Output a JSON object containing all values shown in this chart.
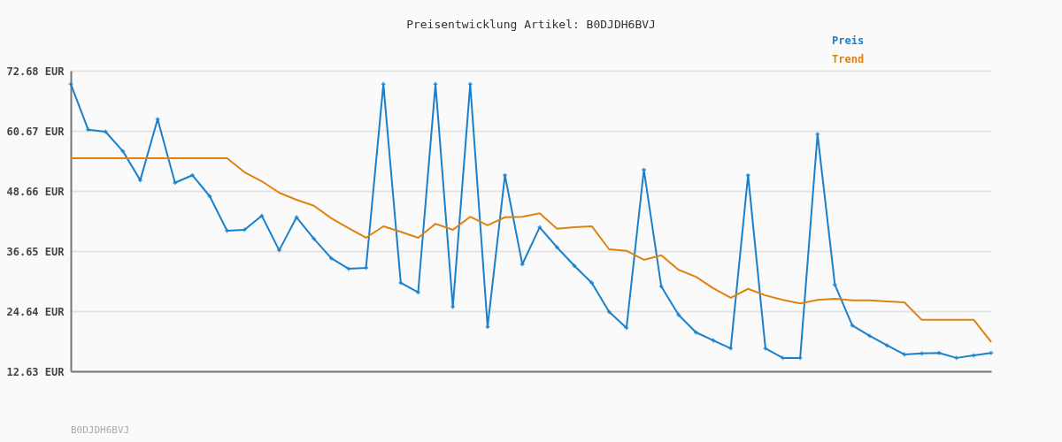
{
  "chart_data": {
    "type": "line",
    "title": "Preisentwicklung Artikel: B0DJDH6BVJ",
    "categories": [
      null,
      null,
      null,
      null,
      null,
      null,
      null,
      null,
      null,
      null,
      null,
      null,
      null,
      null,
      null,
      null,
      null,
      null,
      null,
      null,
      null,
      null,
      null,
      null,
      null,
      null,
      null,
      null,
      null,
      null,
      null,
      null,
      null,
      null,
      null,
      null,
      null,
      null,
      null,
      null,
      null,
      null,
      null,
      null,
      null,
      null,
      null,
      null,
      null,
      null,
      null,
      null,
      null,
      null
    ],
    "series": [
      {
        "name": "Preis",
        "color": "#1a80cc",
        "marker": "cross",
        "values": [
          70.0,
          60.9,
          60.5,
          56.6,
          50.8,
          63.0,
          50.3,
          51.8,
          47.6,
          40.7,
          40.9,
          43.7,
          36.8,
          43.4,
          39.1,
          35.2,
          33.1,
          33.3,
          70.0,
          30.3,
          28.4,
          70.0,
          25.5,
          70.0,
          21.5,
          51.8,
          34.0,
          41.4,
          37.4,
          33.7,
          30.3,
          24.5,
          21.3,
          52.9,
          29.6,
          23.9,
          20.4,
          18.8,
          17.2,
          51.8,
          17.2,
          15.3,
          15.3,
          60.0,
          29.9,
          21.8,
          19.7,
          17.8,
          16.0,
          16.2,
          16.3,
          15.3,
          15.8,
          16.3
        ]
      },
      {
        "name": "Trend",
        "color": "#e0820f",
        "marker": "none",
        "values": [
          55.2,
          55.2,
          55.2,
          55.2,
          55.2,
          55.2,
          55.2,
          55.2,
          55.2,
          55.2,
          52.4,
          50.6,
          48.3,
          46.9,
          45.7,
          43.2,
          41.2,
          39.3,
          41.6,
          40.5,
          39.3,
          42.1,
          40.9,
          43.5,
          41.8,
          43.4,
          43.5,
          44.2,
          41.1,
          41.4,
          41.6,
          37.0,
          36.7,
          34.9,
          35.8,
          32.9,
          31.5,
          29.2,
          27.3,
          29.1,
          27.8,
          26.9,
          26.2,
          26.9,
          27.1,
          26.8,
          26.8,
          26.6,
          26.4,
          22.9,
          22.9,
          22.9,
          22.9,
          18.5
        ]
      }
    ],
    "ylim": [
      12.63,
      72.68
    ],
    "yticks": [
      {
        "value": 12.63,
        "label": "12.63 EUR"
      },
      {
        "value": 24.64,
        "label": "24.64 EUR"
      },
      {
        "value": 36.65,
        "label": "36.65 EUR"
      },
      {
        "value": 48.66,
        "label": "48.66 EUR"
      },
      {
        "value": 60.67,
        "label": "60.67 EUR"
      },
      {
        "value": 72.68,
        "label": "72.68 EUR"
      }
    ],
    "grid": "y",
    "legend": "top right",
    "line_style": "solid",
    "tick_labels": "y",
    "annotations": [
      "B0DJDH6BVJ"
    ]
  }
}
